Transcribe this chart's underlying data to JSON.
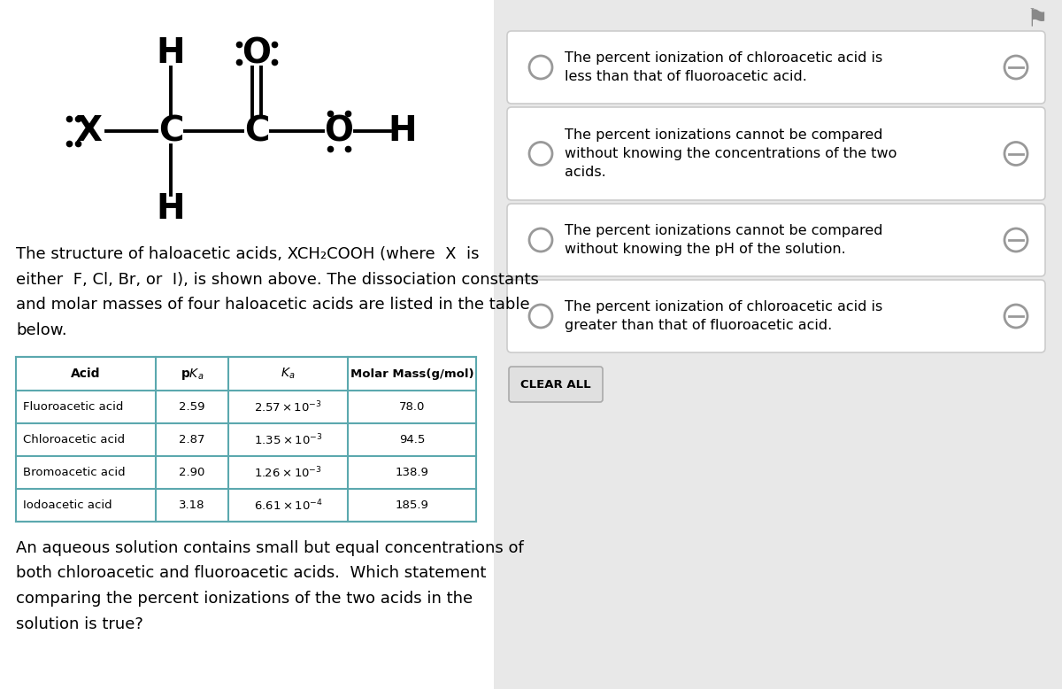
{
  "bg_color": "#e8e8e8",
  "left_bg": "#ffffff",
  "description_text": "The structure of haloacetic acids, XCH₂COOH (where  X  is\neither  F, Cl, Br, or  I), is shown above. The dissociation constants\nand molar masses of four haloacetic acids are listed in the table\nbelow.",
  "question_text": "An aqueous solution contains small but equal concentrations of\nboth chloroacetic and fluoroacetic acids.  Which statement\ncomparing the percent ionizations of the two acids in the\nsolution is true?",
  "choices": [
    "The percent ionization of chloroacetic acid is\nless than that of fluoroacetic acid.",
    "The percent ionizations cannot be compared\nwithout knowing the concentrations of the two\nacids.",
    "The percent ionizations cannot be compared\nwithout knowing the pH of the solution.",
    "The percent ionization of chloroacetic acid is\ngreater than that of fluoroacetic acid."
  ],
  "clear_all_text": "CLEAR ALL",
  "table_border_color": "#5ba8ae",
  "flag_color": "#888888"
}
